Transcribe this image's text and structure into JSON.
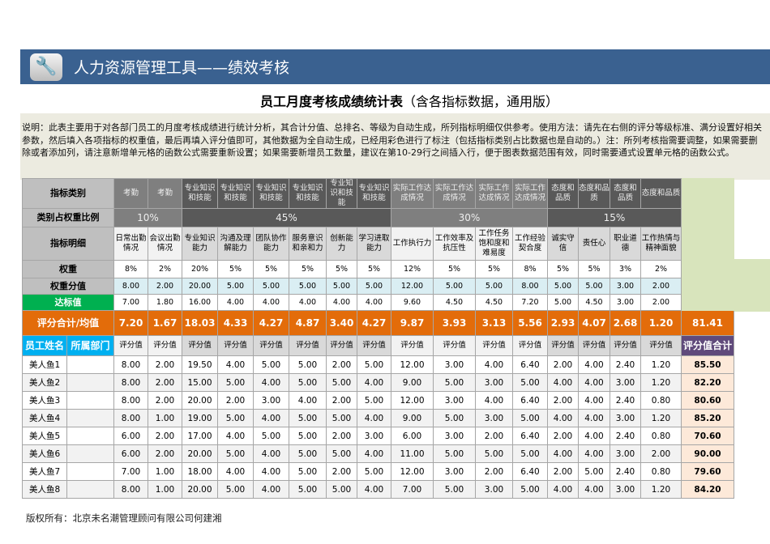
{
  "app": {
    "title": "人力资源管理工具——绩效考核",
    "icon": "wrench-icon"
  },
  "page": {
    "title": "员工月度考核成绩统计表",
    "subtitle": "（含各指标数据，通用版）"
  },
  "note": "说明：此表主要用于对各部门员工的月度考核成绩进行统计分析，其合计分值、总排名、等级为自动生成，所列指标明细仅供参考。使用方法：请先在右侧的评分等级标准、满分设置好相关参数，然后填入各项指标的权重值，最后再填入评分值即可，其他数据为全自动生成，已经用彩色进行了标注（包括指标类别占比数据也是自动的。）注：所列考核指需要调整，如果需要删除或者添加列，请注意新增单元格的函数公式需要重新设置；如果需要新增员工数量，建议在第10-29行之间插入行，便于图表数据范围有效，同时需要通式设置单元格的函数公式。",
  "labels": {
    "category": "指标类别",
    "ratio": "类别占权重比例",
    "detail": "指标明细",
    "weight": "权重",
    "weight_score": "权重分值",
    "target": "达标值",
    "total_avg": "评分合计/均值",
    "name": "员工姓名",
    "dept": "所属部门",
    "score_total": "评分值合计",
    "score": "评分值"
  },
  "categories": [
    "考勤",
    "考勤",
    "专业知识和技能",
    "专业知识和技能",
    "专业知识和技能",
    "专业知识和技能",
    "专业知识和技能",
    "专业知识和技能",
    "实际工作达成情况",
    "实际工作达成情况",
    "实际工作达成情况",
    "实际工作达成情况",
    "态度和品质",
    "态度和品质",
    "态度和品质",
    "态度和品质"
  ],
  "ratios": [
    "10%",
    "45%",
    "30%",
    "15%"
  ],
  "details": [
    "日常出勤情况",
    "会议出勤情况",
    "专业知识能力",
    "沟通及理解能力",
    "团队协作能力",
    "服务意识和亲和力",
    "创新能力",
    "学习进取能力",
    "工作执行力",
    "工作效率及抗压性",
    "工作任务饱和度和难易度",
    "工作经验契合度",
    "诚实守信",
    "责任心",
    "职业道德",
    "工作热情与精神面貌"
  ],
  "weights": [
    "8%",
    "2%",
    "20%",
    "5%",
    "5%",
    "5%",
    "5%",
    "5%",
    "12%",
    "5%",
    "5%",
    "8%",
    "5%",
    "5%",
    "3%",
    "2%"
  ],
  "weight_scores": [
    "8.00",
    "2.00",
    "20.00",
    "5.00",
    "5.00",
    "5.00",
    "5.00",
    "5.00",
    "12.00",
    "5.00",
    "5.00",
    "8.00",
    "5.00",
    "5.00",
    "3.00",
    "2.00"
  ],
  "targets": [
    "7.00",
    "1.80",
    "16.00",
    "4.00",
    "4.00",
    "4.00",
    "4.00",
    "4.00",
    "9.60",
    "4.50",
    "4.50",
    "7.20",
    "5.00",
    "4.50",
    "3.00",
    "2.00"
  ],
  "averages": [
    "7.20",
    "1.67",
    "18.03",
    "4.33",
    "4.27",
    "4.87",
    "3.40",
    "4.27",
    "9.87",
    "3.93",
    "3.13",
    "5.56",
    "2.93",
    "4.07",
    "2.68",
    "1.20"
  ],
  "grand_avg": "81.41",
  "employees": [
    {
      "name": "美人鱼1",
      "dept": "",
      "scores": [
        "8.00",
        "2.00",
        "19.50",
        "4.00",
        "5.00",
        "5.00",
        "2.00",
        "5.00",
        "12.00",
        "3.00",
        "4.00",
        "6.40",
        "2.00",
        "4.00",
        "2.40",
        "1.20"
      ],
      "total": "85.50"
    },
    {
      "name": "美人鱼2",
      "dept": "",
      "scores": [
        "8.00",
        "2.00",
        "15.00",
        "5.00",
        "4.00",
        "5.00",
        "5.00",
        "4.00",
        "9.00",
        "5.00",
        "3.00",
        "5.00",
        "4.00",
        "4.00",
        "3.00",
        "1.20"
      ],
      "total": "82.20"
    },
    {
      "name": "美人鱼3",
      "dept": "",
      "scores": [
        "8.00",
        "2.00",
        "20.00",
        "2.00",
        "3.00",
        "4.00",
        "2.00",
        "5.00",
        "12.00",
        "3.00",
        "4.00",
        "6.40",
        "2.00",
        "4.00",
        "2.40",
        "0.80"
      ],
      "total": "80.60"
    },
    {
      "name": "美人鱼4",
      "dept": "",
      "scores": [
        "8.00",
        "1.00",
        "19.00",
        "5.00",
        "4.00",
        "5.00",
        "5.00",
        "4.00",
        "9.00",
        "5.00",
        "3.00",
        "5.00",
        "4.00",
        "4.00",
        "3.00",
        "1.20"
      ],
      "total": "85.20"
    },
    {
      "name": "美人鱼5",
      "dept": "",
      "scores": [
        "6.00",
        "2.00",
        "17.00",
        "4.00",
        "5.00",
        "5.00",
        "2.00",
        "3.00",
        "6.00",
        "3.00",
        "2.00",
        "6.40",
        "2.00",
        "4.00",
        "2.40",
        "0.80"
      ],
      "total": "70.60"
    },
    {
      "name": "美人鱼6",
      "dept": "",
      "scores": [
        "6.00",
        "2.00",
        "20.00",
        "5.00",
        "4.00",
        "5.00",
        "5.00",
        "4.00",
        "11.00",
        "5.00",
        "5.00",
        "5.00",
        "4.00",
        "4.00",
        "3.00",
        "2.00"
      ],
      "total": "90.00"
    },
    {
      "name": "美人鱼7",
      "dept": "",
      "scores": [
        "7.00",
        "1.00",
        "18.00",
        "4.00",
        "4.00",
        "5.00",
        "2.00",
        "5.00",
        "12.00",
        "3.00",
        "2.00",
        "6.40",
        "2.00",
        "5.00",
        "2.40",
        "0.80"
      ],
      "total": "79.60"
    },
    {
      "name": "美人鱼8",
      "dept": "",
      "scores": [
        "8.00",
        "1.00",
        "20.00",
        "5.00",
        "4.00",
        "5.00",
        "5.00",
        "4.00",
        "7.00",
        "5.00",
        "3.00",
        "5.00",
        "4.00",
        "4.00",
        "3.00",
        "1.20"
      ],
      "total": "84.20"
    }
  ],
  "footer": "版权所有：北京未名潮管理顾问有限公司何建湘",
  "colors": {
    "banner": "#3a6190",
    "orange": "#e36c0a",
    "cyan": "#00b0f0",
    "purple": "#604a7b",
    "green": "#00b050",
    "light_green": "#d8e4bc",
    "total_bg": "#fde9d9"
  }
}
